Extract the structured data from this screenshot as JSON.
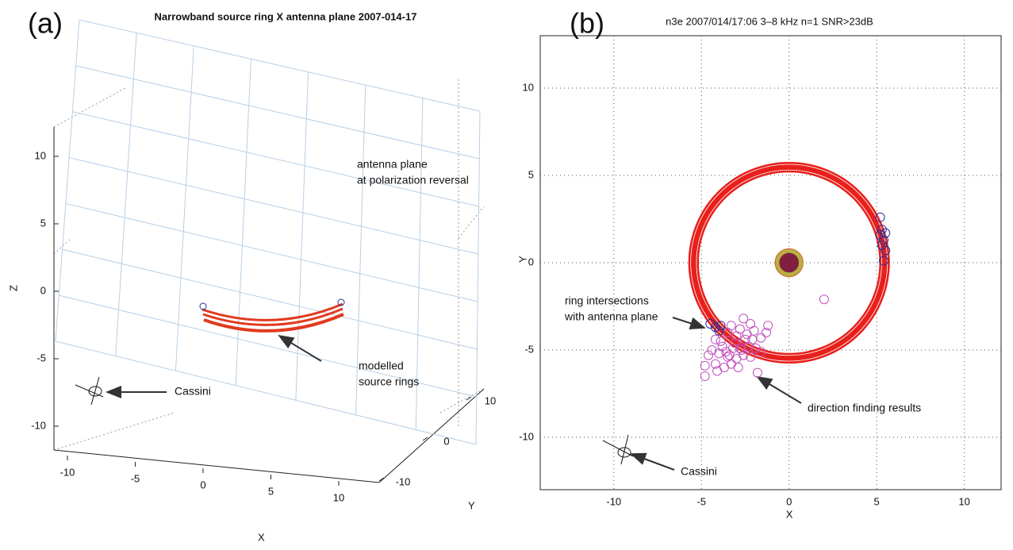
{
  "chart_data": [
    {
      "type": "3d",
      "panel_label": "(a)",
      "title": "Narrowband source ring X antenna plane 2007-014-17",
      "xlabel": "X",
      "ylabel": "Y",
      "zlabel": "Z",
      "xticks": [
        -10,
        -5,
        0,
        5,
        10
      ],
      "yticks": [
        -10,
        0,
        10
      ],
      "zticks": [
        -10,
        -5,
        0,
        5,
        10
      ],
      "annotations": [
        [
          "antenna plane",
          "at polarization reversal"
        ],
        [
          "modelled",
          "source rings"
        ],
        [
          "Cassini"
        ]
      ]
    },
    {
      "type": "scatter",
      "panel_label": "(b)",
      "title": "n3e 2007/014/17:06  3–8 kHz n=1 SNR>23dB",
      "xlabel": "X",
      "ylabel": "Y",
      "xlim": [
        -14.2,
        12.1
      ],
      "ylim": [
        -13,
        13
      ],
      "xticks": [
        -10,
        -5,
        0,
        5,
        10
      ],
      "yticks": [
        -10,
        -5,
        0,
        5,
        10
      ],
      "grid": true,
      "ring": {
        "r_inner": 5.15,
        "r_outer": 5.75,
        "color": "#e8201c"
      },
      "planet": {
        "radius": 0.8
      },
      "series": [
        {
          "color": "#c050c0",
          "x": [
            2.0,
            -1.2,
            -2.6,
            -3.3,
            -2.2,
            -1.6,
            -2.0,
            -2.8,
            -3.5,
            -4.2,
            -3.0,
            -2.5,
            -3.8,
            -3.2,
            -2.7,
            -2.3,
            -4.0,
            -3.5,
            -3.0,
            -2.6,
            -4.4,
            -4.8,
            -4.8,
            -4.2,
            -3.7,
            -3.3,
            -2.9,
            -2.2,
            -1.9,
            -1.6,
            -3.9,
            -4.6,
            -2.4,
            -1.3,
            -1.8,
            -3.6,
            -3.1,
            -2.8,
            -4.1,
            -2.1,
            -3.4
          ],
          "y": [
            -2.1,
            -3.6,
            -3.2,
            -3.6,
            -3.5,
            -4.3,
            -3.9,
            -3.8,
            -4.0,
            -4.4,
            -4.2,
            -4.4,
            -4.8,
            -4.9,
            -5.0,
            -4.8,
            -5.2,
            -5.4,
            -5.5,
            -5.3,
            -5.0,
            -5.9,
            -6.5,
            -5.8,
            -6.0,
            -5.8,
            -6.0,
            -5.4,
            -4.9,
            -5.1,
            -4.5,
            -5.3,
            -4.1,
            -4.0,
            -6.3,
            -5.1,
            -4.6,
            -4.9,
            -6.2,
            -4.4,
            -5.3
          ]
        },
        {
          "color": "#2030a0",
          "x": [
            5.2,
            5.3,
            5.2,
            5.5,
            5.4,
            5.3,
            5.5,
            5.4,
            -4.5,
            -4.2,
            -3.9,
            -4.0
          ],
          "y": [
            2.6,
            1.9,
            1.6,
            1.7,
            1.3,
            1.0,
            0.7,
            0.1,
            -3.5,
            -3.7,
            -3.6,
            -3.9
          ]
        }
      ],
      "annotations": [
        [
          "ring intersections",
          "with antenna plane"
        ],
        [
          "direction finding results"
        ],
        [
          "Cassini"
        ]
      ]
    }
  ]
}
